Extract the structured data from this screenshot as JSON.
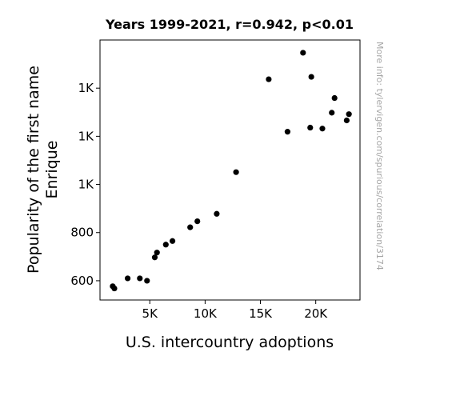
{
  "chart_data": {
    "type": "scatter",
    "title": "Years 1999-2021, r=0.942, p<0.01",
    "xlabel": "U.S. intercountry adoptions",
    "ylabel_lines": [
      "Popularity of the first name",
      "Enrique"
    ],
    "watermark": "More info: tylervigen.com/spurious/correlation/3174",
    "xlim": [
      500,
      24000
    ],
    "ylim": [
      520,
      1600
    ],
    "grid": false,
    "x_ticks": [
      {
        "value": 5000,
        "label": "5K"
      },
      {
        "value": 10000,
        "label": "10K"
      },
      {
        "value": 15000,
        "label": "15K"
      },
      {
        "value": 20000,
        "label": "20K"
      }
    ],
    "y_ticks": [
      {
        "value": 600,
        "label": "600"
      },
      {
        "value": 800,
        "label": "800"
      },
      {
        "value": 1000,
        "label": "1K"
      },
      {
        "value": 1200,
        "label": "1K"
      },
      {
        "value": 1400,
        "label": "1K"
      }
    ],
    "points": [
      {
        "x": 1650,
        "y": 577
      },
      {
        "x": 1800,
        "y": 568
      },
      {
        "x": 3000,
        "y": 610
      },
      {
        "x": 4100,
        "y": 610
      },
      {
        "x": 4750,
        "y": 600
      },
      {
        "x": 5450,
        "y": 697
      },
      {
        "x": 5650,
        "y": 717
      },
      {
        "x": 6450,
        "y": 750
      },
      {
        "x": 7050,
        "y": 765
      },
      {
        "x": 8650,
        "y": 822
      },
      {
        "x": 9300,
        "y": 847
      },
      {
        "x": 11050,
        "y": 878
      },
      {
        "x": 12800,
        "y": 1051
      },
      {
        "x": 15750,
        "y": 1437
      },
      {
        "x": 17450,
        "y": 1219
      },
      {
        "x": 18850,
        "y": 1547
      },
      {
        "x": 19500,
        "y": 1236
      },
      {
        "x": 19600,
        "y": 1447
      },
      {
        "x": 20600,
        "y": 1232
      },
      {
        "x": 21450,
        "y": 1298
      },
      {
        "x": 21700,
        "y": 1359
      },
      {
        "x": 22800,
        "y": 1266
      },
      {
        "x": 23000,
        "y": 1292
      }
    ]
  }
}
